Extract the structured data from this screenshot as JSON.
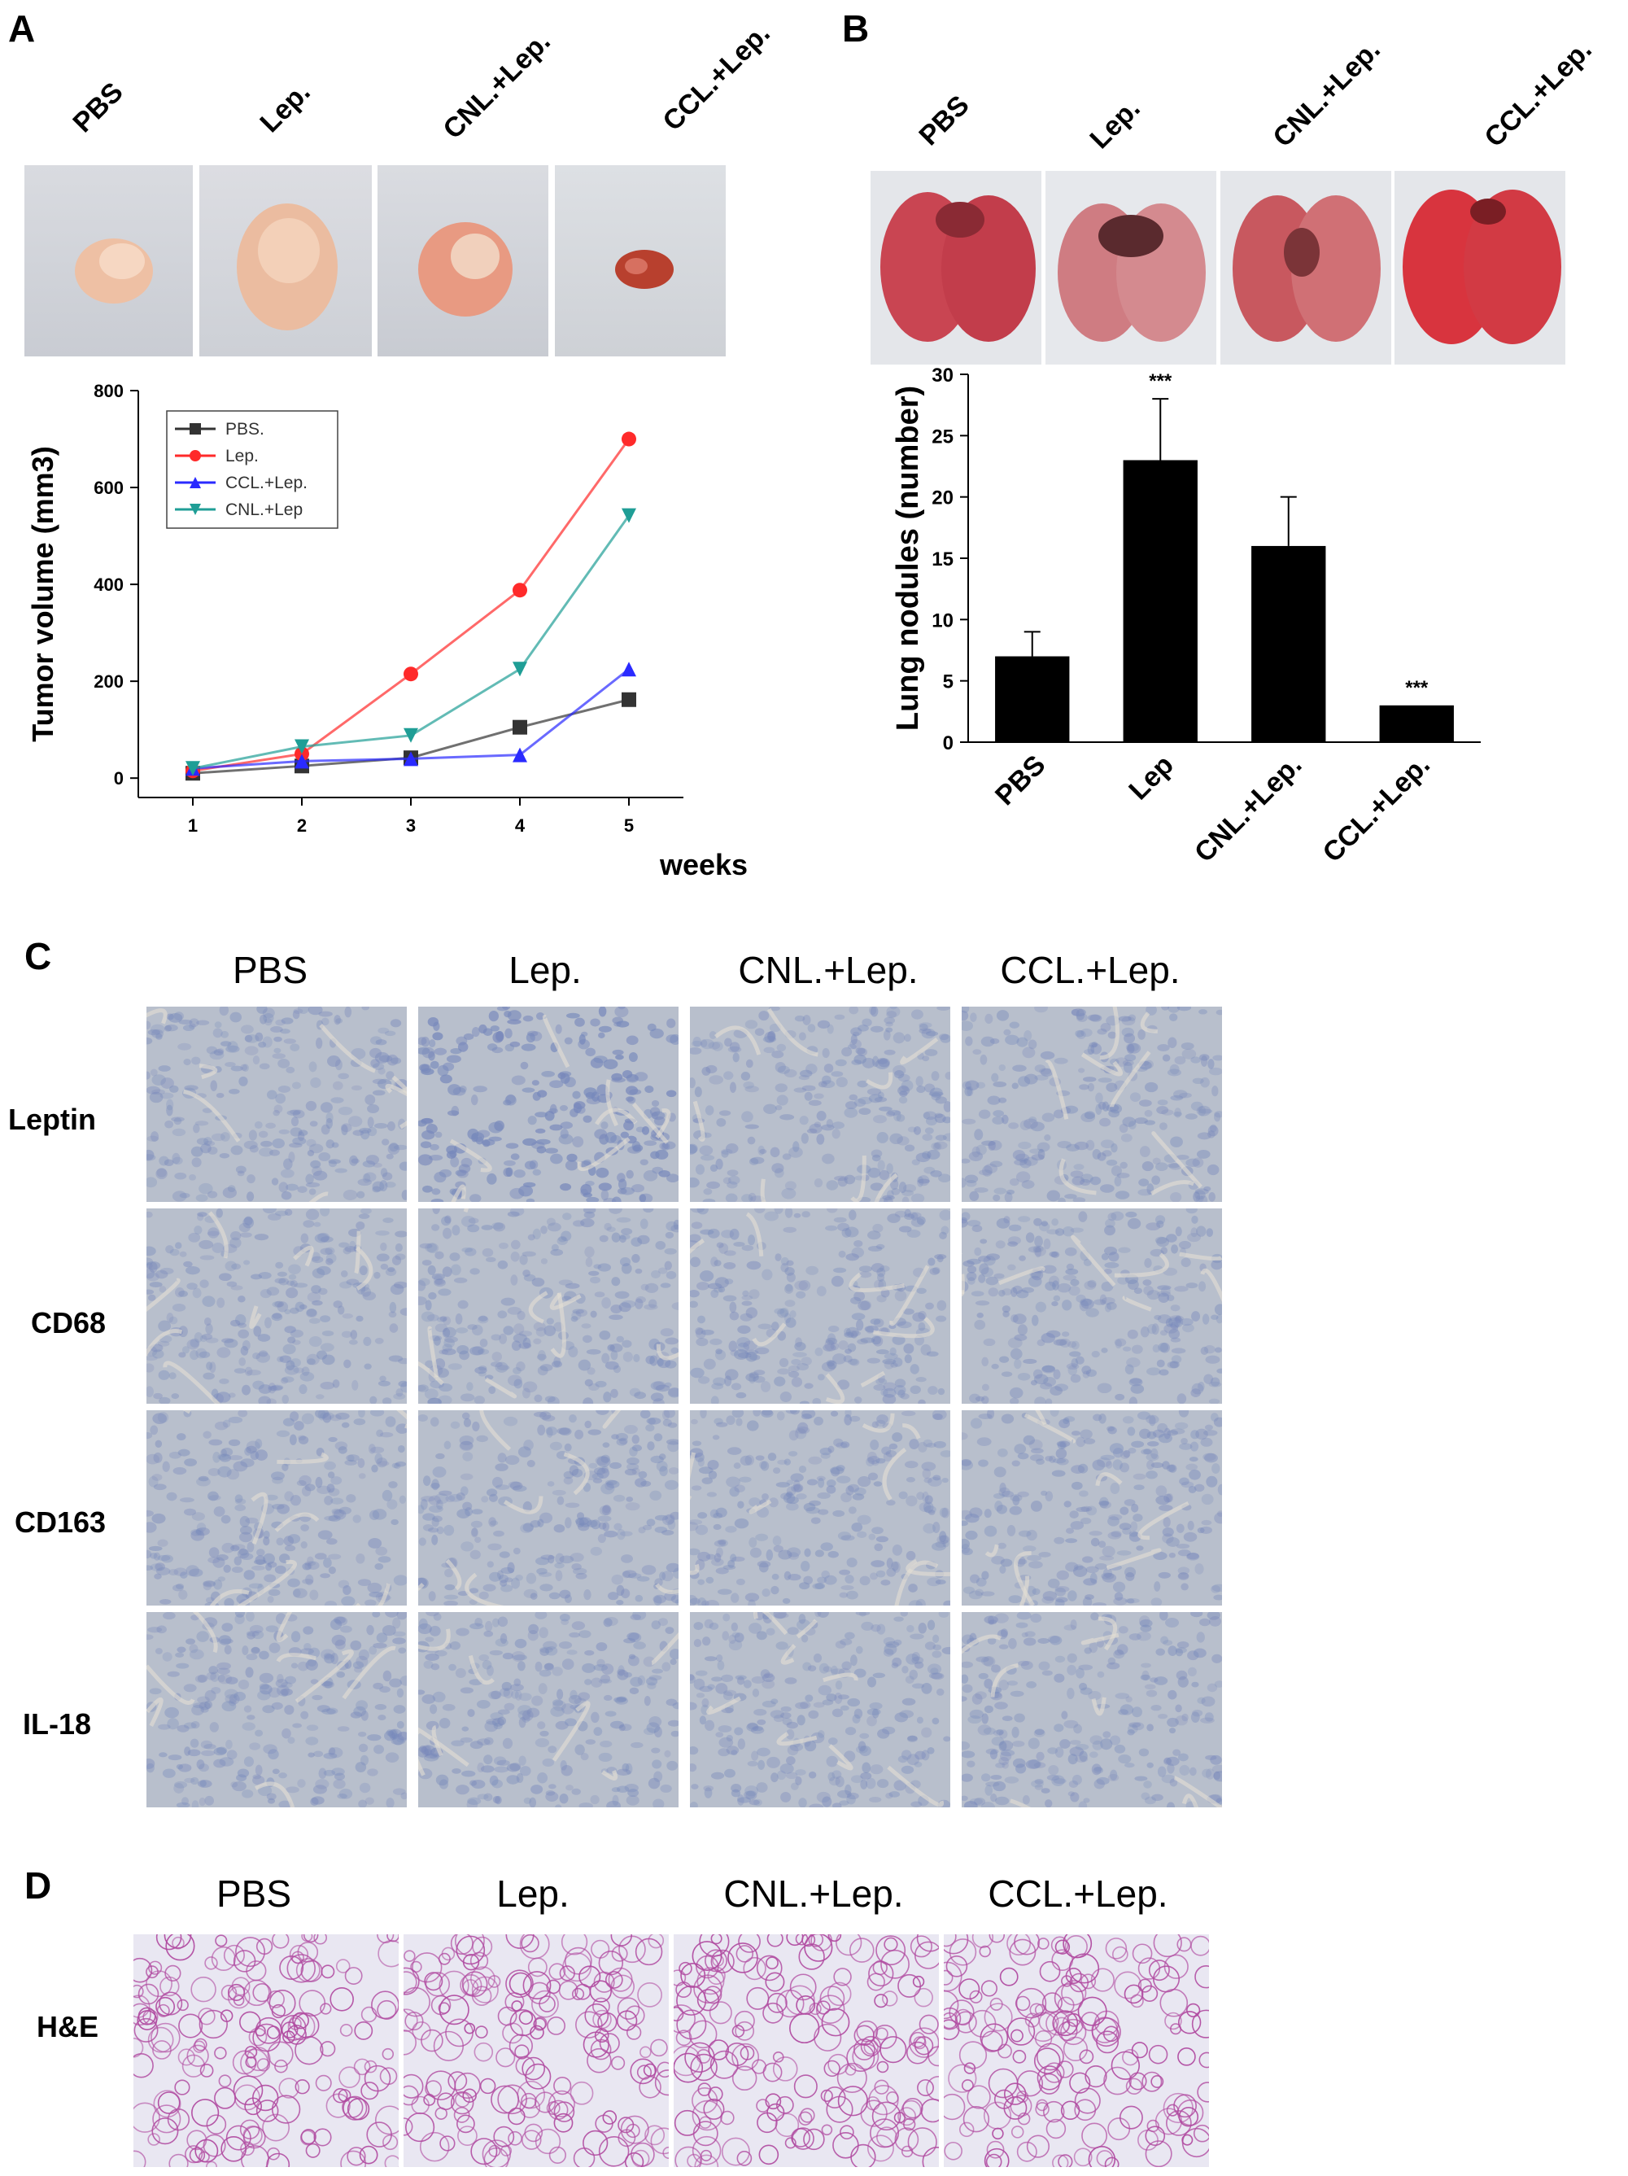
{
  "panels": {
    "A": {
      "letter": "A",
      "photo_labels": [
        "PBS",
        "Lep.",
        "CNL.+Lep.",
        "CCL.+Lep."
      ]
    },
    "B": {
      "letter": "B",
      "photo_labels": [
        "PBS",
        "Lep.",
        "CNL.+Lep.",
        "CCL.+Lep."
      ]
    },
    "C": {
      "letter": "C",
      "col_headers": [
        "PBS",
        "Lep.",
        "CNL.+Lep.",
        "CCL.+Lep."
      ],
      "row_labels": [
        "Leptin",
        "CD68",
        "CD163",
        "IL-18"
      ]
    },
    "D": {
      "letter": "D",
      "col_headers": [
        "PBS",
        "Lep.",
        "CNL.+Lep.",
        "CCL.+Lep."
      ],
      "row_label": "H&E"
    }
  },
  "colors": {
    "pbs": "#333333",
    "lep": "#ff2a2a",
    "ccl": "#2a2aff",
    "cnl": "#1f9e96",
    "ihc_bg": "#b8bfcc",
    "ihc_cell": "#7788bb",
    "he_bg": "#e9e7f2",
    "he_tissue": "#b04aa0"
  },
  "chart_data": [
    {
      "type": "line",
      "title": "",
      "xlabel": "weeks",
      "ylabel": "Tumor volume (mm3)",
      "x": [
        1,
        2,
        3,
        4,
        5
      ],
      "xticks": [
        "1",
        "2",
        "3",
        "4",
        "5"
      ],
      "yticks": [
        "0",
        "200",
        "400",
        "600",
        "800"
      ],
      "xlim": [
        0.5,
        5.5
      ],
      "ylim": [
        -40,
        800
      ],
      "legend_position": "top-left",
      "series": [
        {
          "name": "PBS.",
          "values": [
            10,
            25,
            42,
            105,
            162
          ],
          "errors": [
            0,
            0,
            0,
            0,
            8
          ],
          "marker": "square",
          "color": "#333333"
        },
        {
          "name": "Lep.",
          "values": [
            15,
            50,
            215,
            388,
            700
          ],
          "errors": [
            0,
            0,
            0,
            6,
            15
          ],
          "marker": "circle",
          "color": "#ff2a2a"
        },
        {
          "name": "CCL.+Lep.",
          "values": [
            20,
            35,
            40,
            48,
            225
          ],
          "errors": [
            0,
            0,
            0,
            0,
            12
          ],
          "marker": "triangle-up",
          "color": "#2a2aff"
        },
        {
          "name": "CNL.+Lep",
          "values": [
            20,
            65,
            88,
            225,
            542
          ],
          "errors": [
            0,
            0,
            0,
            8,
            10
          ],
          "marker": "triangle-down",
          "color": "#1f9e96"
        }
      ]
    },
    {
      "type": "bar",
      "title": "",
      "xlabel": "",
      "ylabel": "Lung nodules (number)",
      "categories": [
        "PBS",
        "Lep",
        "CNL.+Lep.",
        "CCL.+Lep."
      ],
      "values": [
        7,
        23,
        16,
        3
      ],
      "errors": [
        2,
        5,
        4,
        0
      ],
      "annotations": [
        "",
        "***",
        "",
        "***"
      ],
      "yticks": [
        "0",
        "5",
        "10",
        "15",
        "20",
        "25",
        "30"
      ],
      "ylim": [
        0,
        30
      ],
      "color": "#000000"
    }
  ]
}
